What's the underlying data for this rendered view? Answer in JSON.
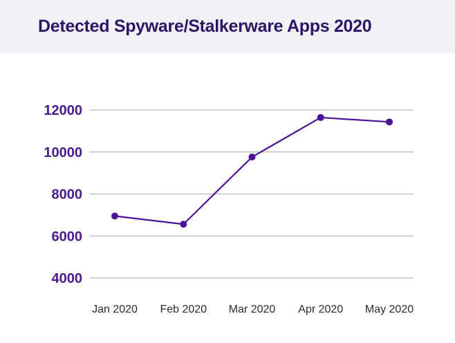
{
  "chart_data": {
    "type": "line",
    "title": "Detected Spyware/Stalkerware Apps 2020",
    "xlabel": "",
    "ylabel": "",
    "categories": [
      "Jan 2020",
      "Feb 2020",
      "Mar 2020",
      "Apr 2020",
      "May 2020"
    ],
    "series": [
      {
        "values": [
          6950,
          6560,
          9760,
          11640,
          11430
        ]
      }
    ],
    "yticks": [
      "4000",
      "6000",
      "8000",
      "10000",
      "12000"
    ],
    "ylim": [
      4000,
      12000
    ],
    "grid": true,
    "legend": "none",
    "colors": {
      "line": "#4b1298",
      "title": "#2a1667",
      "ytick": "#4a1a8f",
      "xtick": "#2b2b3a",
      "header_bg": "#f1f1f6"
    }
  }
}
